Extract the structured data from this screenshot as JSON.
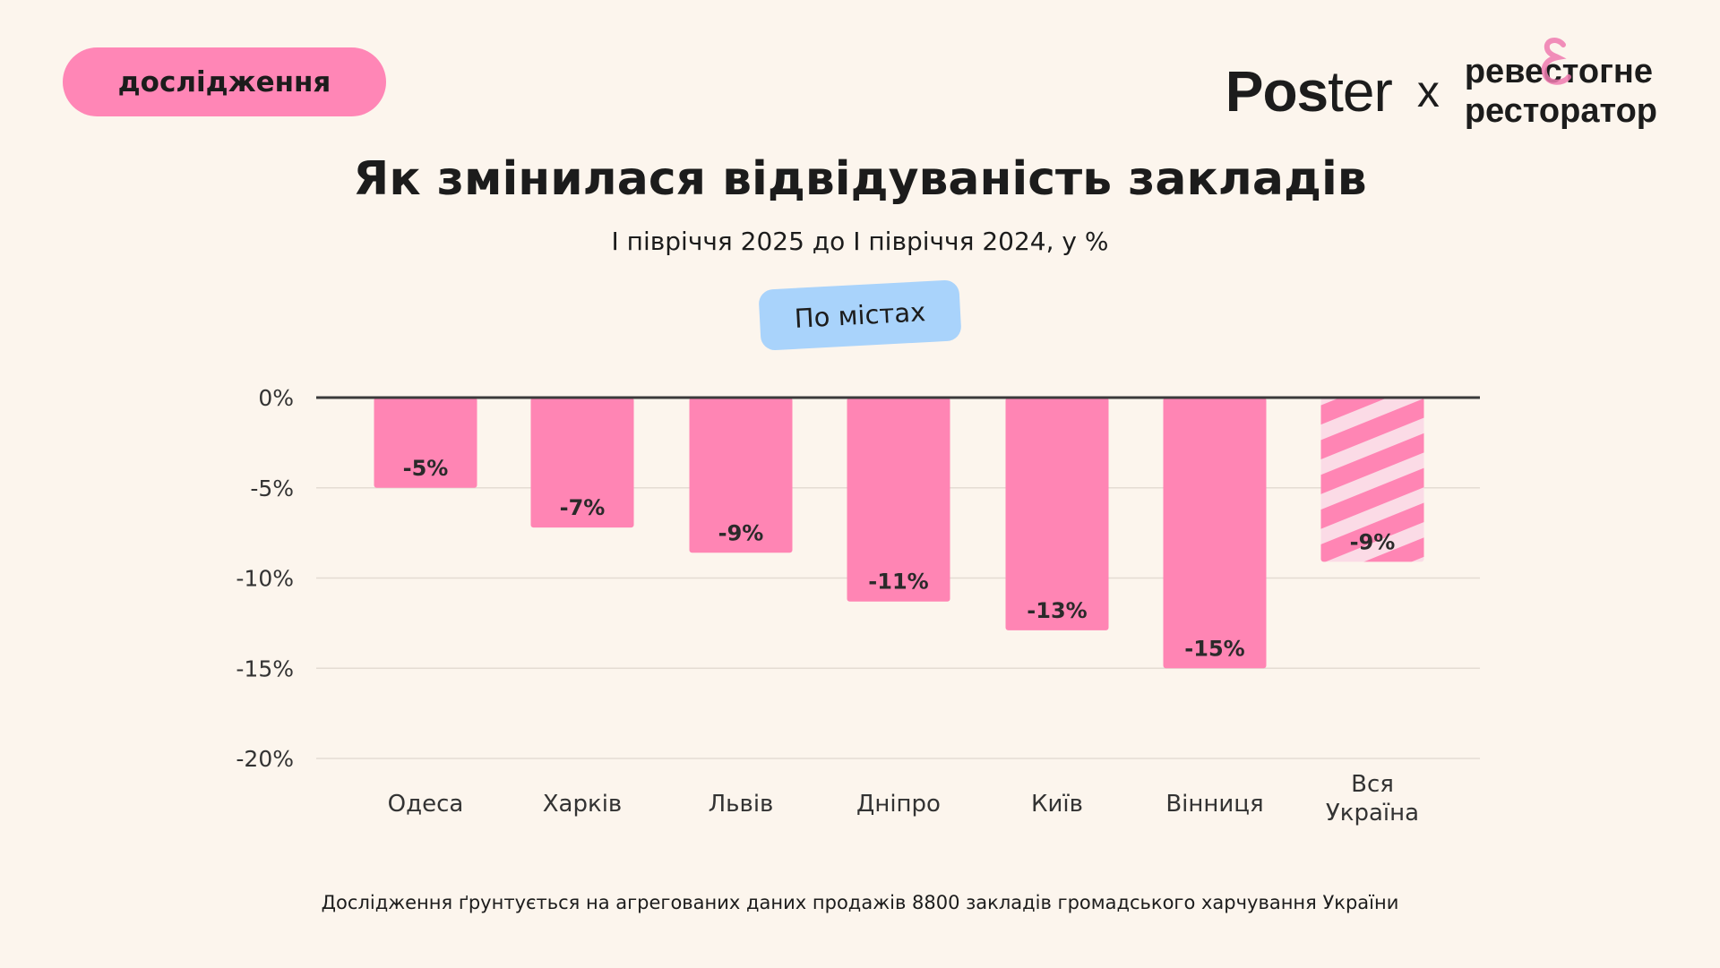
{
  "tag": "дослідження",
  "logo": {
    "poster": "Poster",
    "x": "x",
    "partner_line1": "ревестогне",
    "partner_line2": "ресторатор"
  },
  "colors": {
    "background": "#fcf5ed",
    "bar": "#ff85b4",
    "stripe_light": "#fbdbe6",
    "pill_tag": "#ff86b6",
    "pill_filter": "#a9d3fb"
  },
  "filter_pill": "По містах",
  "footer": "Дослідження ґрунтується на агрегованих даних продажів 8800 закладів громадського харчування України",
  "chart_data": {
    "type": "bar",
    "title": "Як змінилася відвідуваність закладів",
    "subtitle": "І півріччя 2025 до І півріччя 2024, у %",
    "categories": [
      "Одеса",
      "Харків",
      "Львів",
      "Дніпро",
      "Київ",
      "Вінниця",
      "Вся Україна"
    ],
    "values": [
      -5,
      -7.2,
      -8.6,
      -11.3,
      -12.9,
      -15,
      -9.1
    ],
    "data_labels": [
      "-5%",
      "-7%",
      "-9%",
      "-11%",
      "-13%",
      "-15%",
      "-9%"
    ],
    "hatched": [
      false,
      false,
      false,
      false,
      false,
      false,
      true
    ],
    "ylim": [
      -20,
      0
    ],
    "yticks": [
      0,
      -5,
      -10,
      -15,
      -20
    ],
    "ytick_labels": [
      "0%",
      "-5%",
      "-10%",
      "-15%",
      "-20%"
    ],
    "grid": true
  }
}
